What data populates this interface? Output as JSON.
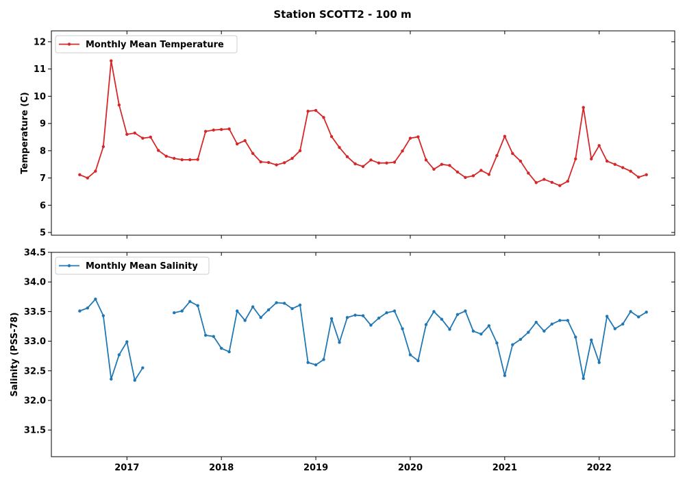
{
  "figure": {
    "title": "Station SCOTT2 - 100 m"
  },
  "chart_data": [
    {
      "type": "line",
      "ylabel": "Temperature (C)",
      "ylim": [
        4.9,
        12.4
      ],
      "yticks": [
        5,
        6,
        7,
        8,
        9,
        10,
        11,
        12
      ],
      "xlim": [
        2016.2,
        2022.8
      ],
      "grid": false,
      "legend": "top-left",
      "color": "#d62728",
      "series": [
        {
          "name": "Monthly Mean Temperature",
          "x": [
            2016.5,
            2016.583,
            2016.667,
            2016.75,
            2016.833,
            2016.917,
            2017.0,
            2017.083,
            2017.167,
            2017.25,
            2017.333,
            2017.417,
            2017.5,
            2017.583,
            2017.667,
            2017.75,
            2017.833,
            2017.917,
            2018.0,
            2018.083,
            2018.167,
            2018.25,
            2018.333,
            2018.417,
            2018.5,
            2018.583,
            2018.667,
            2018.75,
            2018.833,
            2018.917,
            2019.0,
            2019.083,
            2019.167,
            2019.25,
            2019.333,
            2019.417,
            2019.5,
            2019.583,
            2019.667,
            2019.75,
            2019.833,
            2019.917,
            2020.0,
            2020.083,
            2020.167,
            2020.25,
            2020.333,
            2020.417,
            2020.5,
            2020.583,
            2020.667,
            2020.75,
            2020.833,
            2020.917,
            2021.0,
            2021.083,
            2021.167,
            2021.25,
            2021.333,
            2021.417,
            2021.5,
            2021.583,
            2021.667,
            2021.75,
            2021.833,
            2021.917,
            2022.0,
            2022.083,
            2022.167,
            2022.25,
            2022.333,
            2022.417,
            2022.5
          ],
          "values": [
            7.12,
            7.0,
            7.25,
            8.15,
            11.3,
            9.68,
            8.6,
            8.65,
            8.46,
            8.5,
            8.01,
            7.8,
            7.72,
            7.67,
            7.67,
            7.68,
            8.71,
            8.76,
            8.78,
            8.8,
            8.25,
            8.37,
            7.9,
            7.59,
            7.57,
            7.48,
            7.56,
            7.72,
            8.0,
            9.45,
            9.48,
            9.22,
            8.52,
            8.12,
            7.78,
            7.52,
            7.42,
            7.66,
            7.55,
            7.55,
            7.58,
            7.99,
            8.46,
            8.51,
            7.66,
            7.32,
            7.5,
            7.46,
            7.22,
            7.02,
            7.08,
            7.28,
            7.13,
            7.82,
            8.53,
            7.9,
            7.62,
            7.18,
            6.83,
            6.95,
            6.84,
            6.72,
            6.88,
            7.7,
            9.59,
            7.7,
            8.19,
            7.62,
            7.5,
            7.38,
            7.25,
            7.03,
            7.12
          ]
        }
      ]
    },
    {
      "type": "line",
      "ylabel": "Salinity (PSS-78)",
      "ylim": [
        31.05,
        34.5
      ],
      "yticks": [
        31.5,
        32.0,
        32.5,
        33.0,
        33.5,
        34.0,
        34.5
      ],
      "xlim": [
        2016.2,
        2022.8
      ],
      "xticks": [
        2017,
        2018,
        2019,
        2020,
        2021,
        2022
      ],
      "grid": false,
      "legend": "top-left",
      "color": "#1f77b4",
      "series": [
        {
          "name": "Monthly Mean Salinity",
          "x": [
            2016.5,
            2016.583,
            2016.667,
            2016.75,
            2016.833,
            2016.917,
            2017.0,
            2017.083,
            2017.167,
            2017.25,
            2017.333,
            2017.417,
            2017.5,
            2017.583,
            2017.667,
            2017.75,
            2017.833,
            2017.917,
            2018.0,
            2018.083,
            2018.167,
            2018.25,
            2018.333,
            2018.417,
            2018.5,
            2018.583,
            2018.667,
            2018.75,
            2018.833,
            2018.917,
            2019.0,
            2019.083,
            2019.167,
            2019.25,
            2019.333,
            2019.417,
            2019.5,
            2019.583,
            2019.667,
            2019.75,
            2019.833,
            2019.917,
            2020.0,
            2020.083,
            2020.167,
            2020.25,
            2020.333,
            2020.417,
            2020.5,
            2020.583,
            2020.667,
            2020.75,
            2020.833,
            2020.917,
            2021.0,
            2021.083,
            2021.167,
            2021.25,
            2021.333,
            2021.417,
            2021.5,
            2021.583,
            2021.667,
            2021.75,
            2021.833,
            2021.917,
            2022.0,
            2022.083,
            2022.167,
            2022.25,
            2022.333,
            2022.417,
            2022.5
          ],
          "values": [
            33.51,
            33.56,
            33.71,
            33.43,
            32.36,
            32.77,
            32.99,
            32.34,
            32.55,
            null,
            null,
            null,
            33.48,
            33.51,
            33.67,
            33.6,
            33.1,
            33.08,
            32.88,
            32.82,
            33.51,
            33.35,
            33.58,
            33.4,
            33.53,
            33.65,
            33.64,
            33.55,
            33.61,
            32.64,
            32.6,
            32.69,
            33.38,
            32.98,
            33.4,
            33.44,
            33.43,
            33.27,
            33.39,
            33.48,
            33.51,
            33.21,
            32.77,
            32.67,
            33.28,
            33.5,
            33.37,
            33.2,
            33.45,
            33.51,
            33.17,
            33.12,
            33.26,
            32.97,
            32.42,
            32.94,
            33.03,
            33.15,
            33.32,
            33.17,
            33.29,
            33.35,
            33.35,
            33.07,
            32.37,
            33.02,
            32.64,
            33.42,
            33.21,
            33.29,
            33.5,
            33.41,
            33.49
          ]
        }
      ]
    }
  ]
}
